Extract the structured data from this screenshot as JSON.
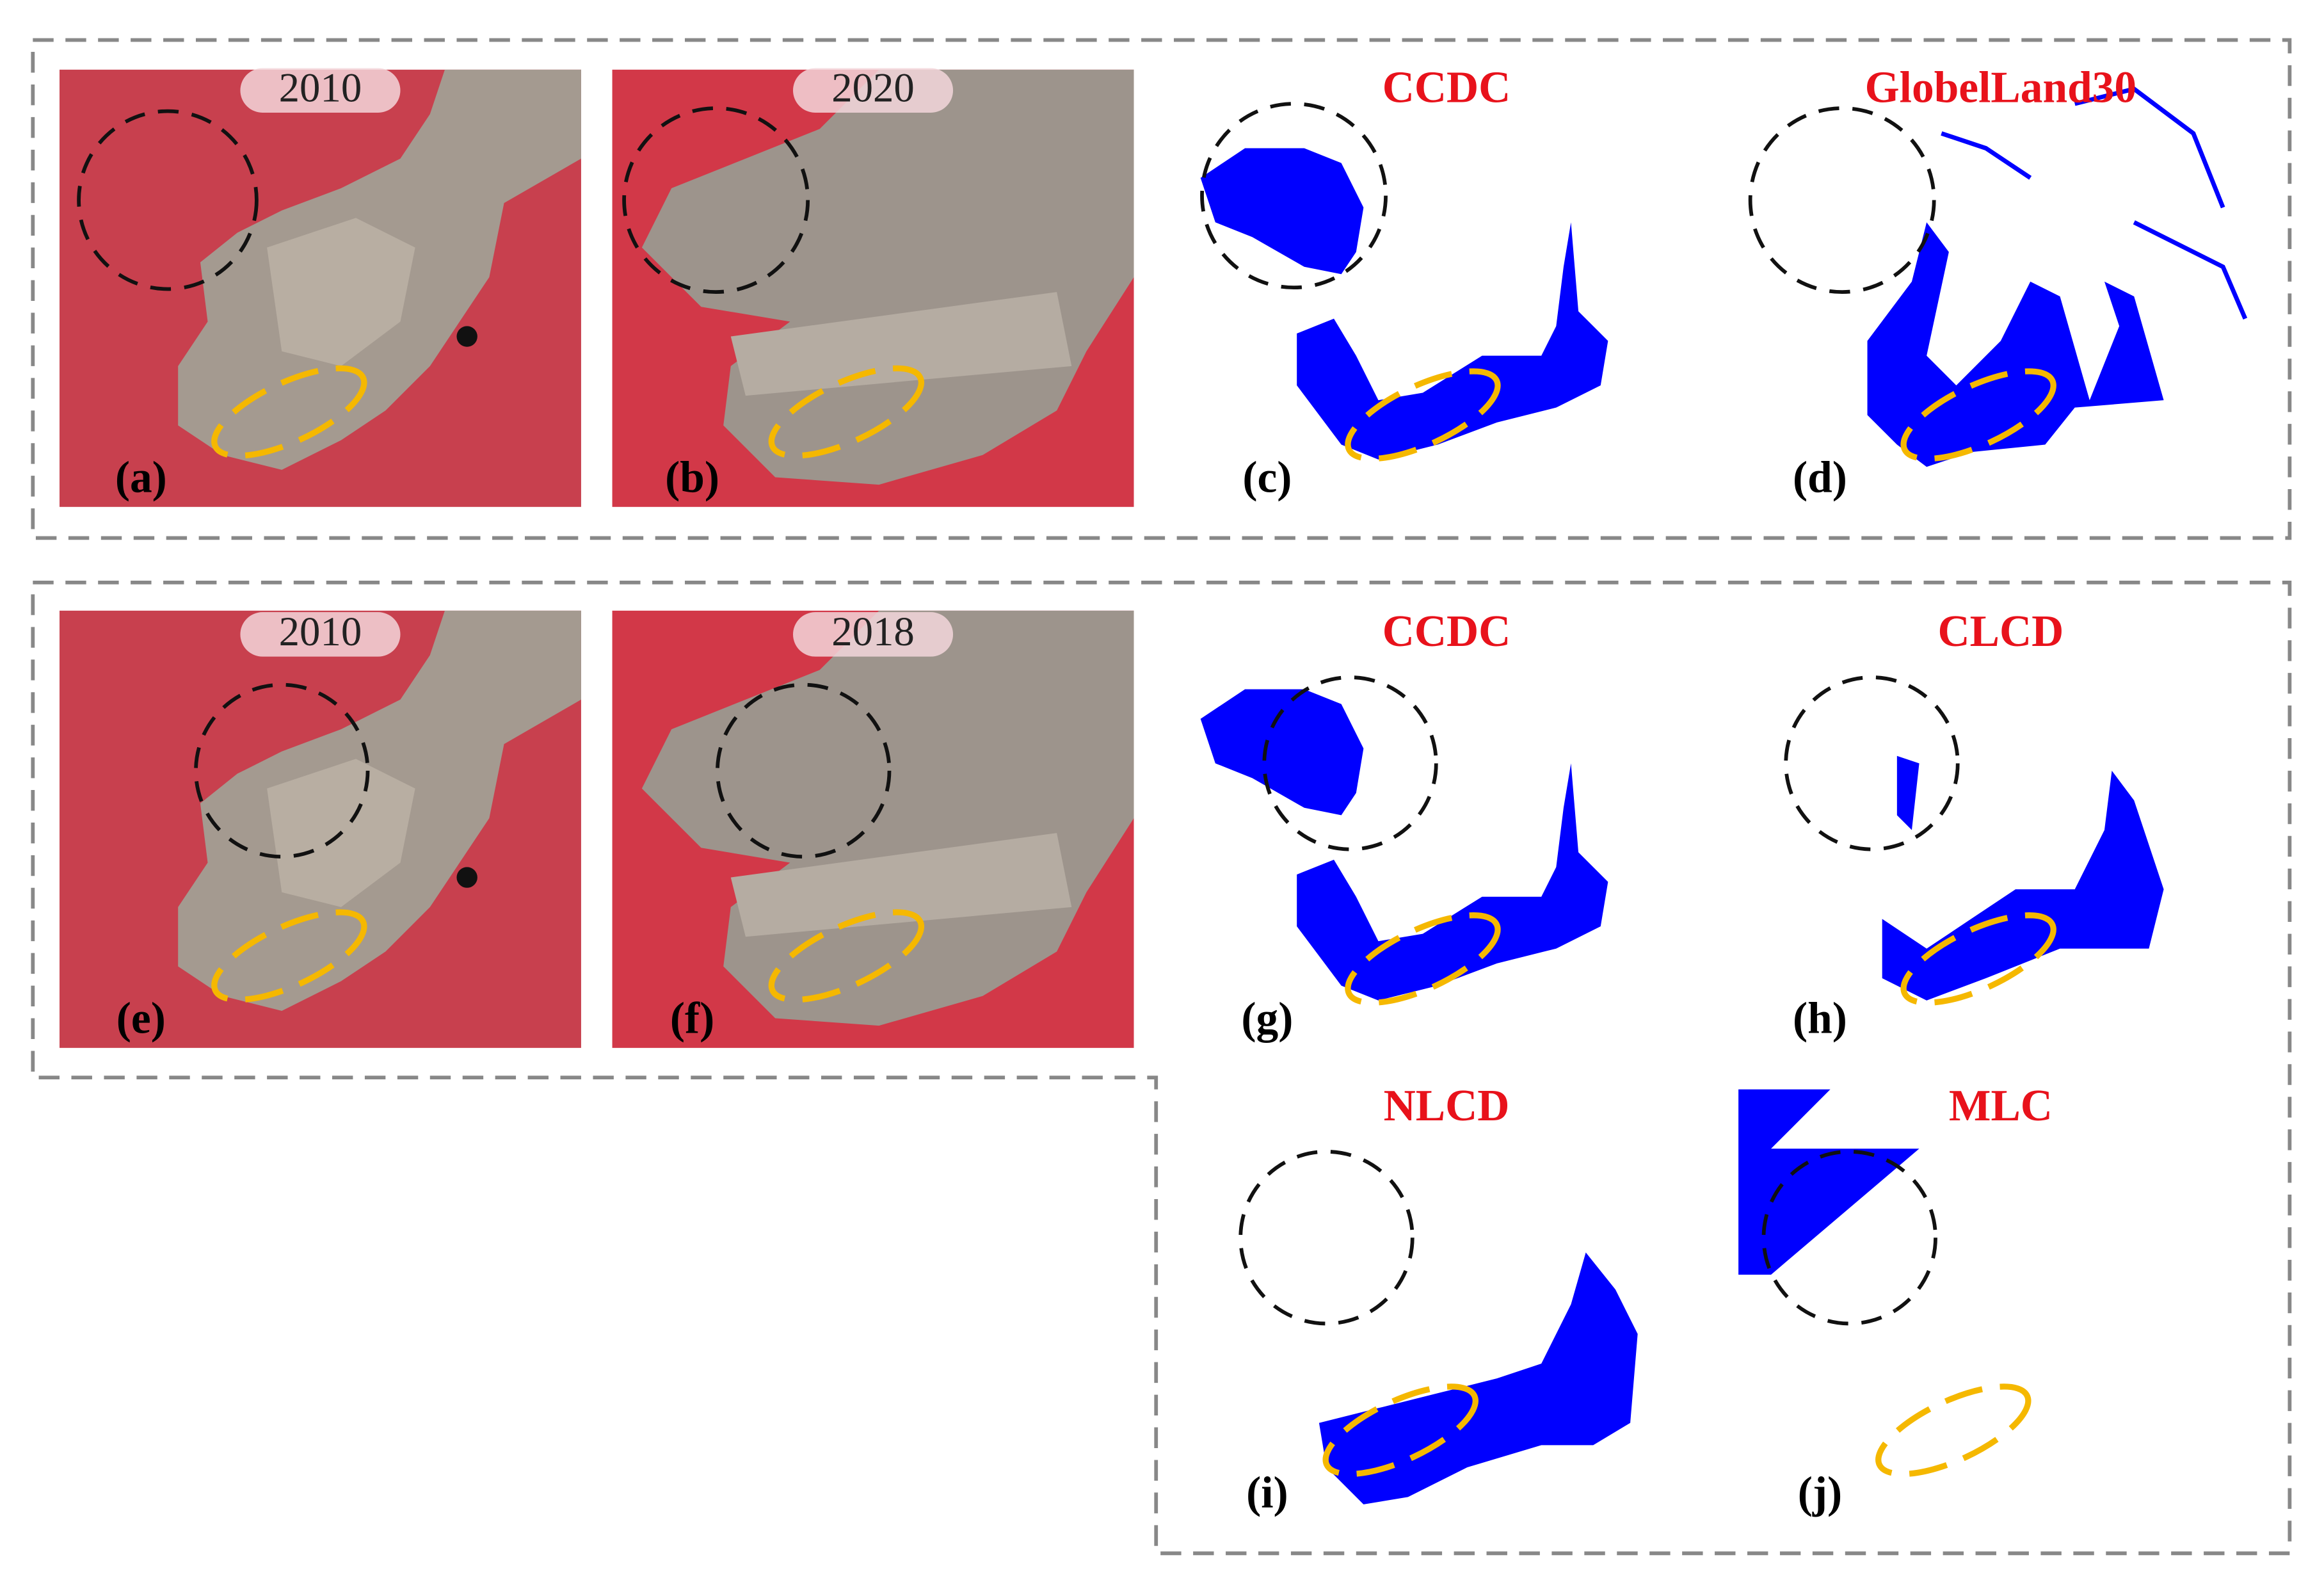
{
  "panels": [
    {
      "label": "(a)",
      "title": "2010"
    },
    {
      "label": "(b)",
      "title": "2020"
    },
    {
      "label": "(c)",
      "title": "CCDC"
    },
    {
      "label": "(d)",
      "title": "GlobelLand30"
    },
    {
      "label": "(e)",
      "title": "2010"
    },
    {
      "label": "(f)",
      "title": "2018"
    },
    {
      "label": "(g)",
      "title": "CCDC"
    },
    {
      "label": "(h)",
      "title": "CLCD"
    },
    {
      "label": "(i)",
      "title": "NLCD"
    },
    {
      "label": "(j)",
      "title": "MLC"
    }
  ]
}
